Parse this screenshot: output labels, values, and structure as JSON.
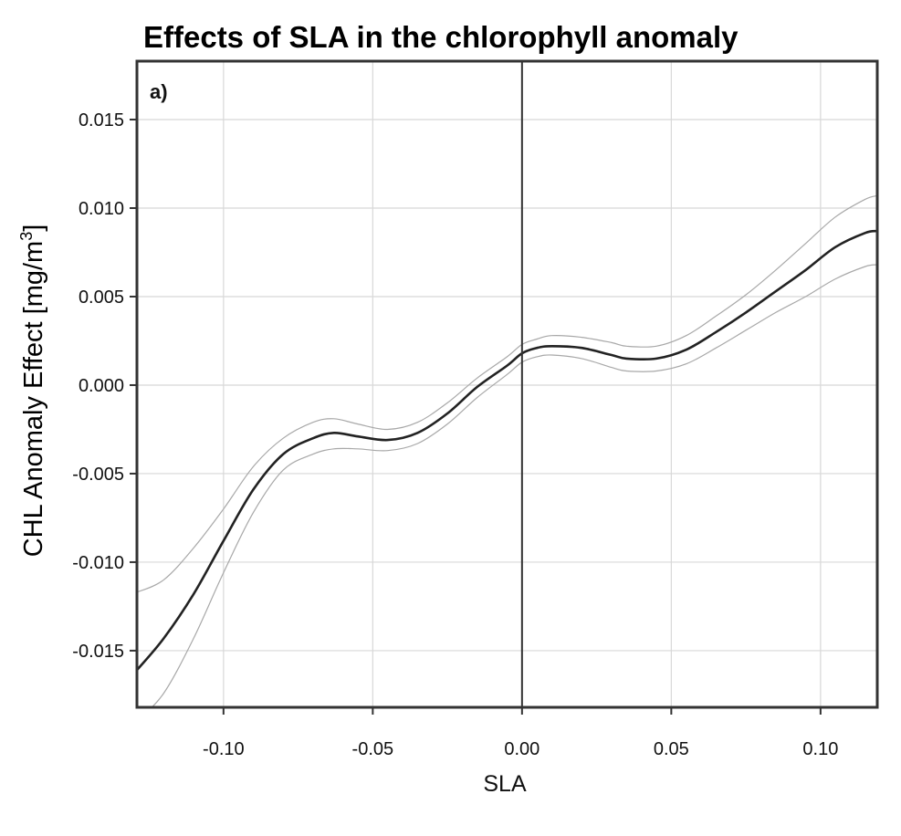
{
  "chart_data": {
    "type": "line",
    "title": "Effects of SLA in the chlorophyll anomaly",
    "panel_label": "a)",
    "xlabel": "SLA",
    "ylabel_main": "CHL Anomaly Effect [mg/m",
    "ylabel_sup": "3",
    "ylabel_end": "]",
    "xlim": [
      -0.129,
      0.119
    ],
    "ylim": [
      -0.0182,
      0.0183
    ],
    "xticks": [
      -0.1,
      -0.05,
      0.0,
      0.05,
      0.1
    ],
    "xtick_labels": [
      "-0.10",
      "-0.05",
      "0.00",
      "0.05",
      "0.10"
    ],
    "yticks": [
      -0.015,
      -0.01,
      -0.005,
      0.0,
      0.005,
      0.01,
      0.015
    ],
    "ytick_labels": [
      "-0.015",
      "-0.010",
      "-0.005",
      "0.000",
      "0.005",
      "0.010",
      "0.015"
    ],
    "grid": true,
    "vline_x": 0.0,
    "x": [
      -0.129,
      -0.12,
      -0.11,
      -0.1,
      -0.09,
      -0.08,
      -0.07,
      -0.063,
      -0.055,
      -0.045,
      -0.035,
      -0.025,
      -0.015,
      -0.005,
      0.0,
      0.005,
      0.01,
      0.02,
      0.03,
      0.035,
      0.045,
      0.055,
      0.065,
      0.075,
      0.085,
      0.095,
      0.105,
      0.115,
      0.119
    ],
    "series": [
      {
        "values": [
          -0.0161,
          -0.0143,
          -0.0118,
          -0.0088,
          -0.0059,
          -0.0039,
          -0.003,
          -0.0027,
          -0.0029,
          -0.0031,
          -0.0027,
          -0.0016,
          -0.0001,
          0.0011,
          0.0018,
          0.0021,
          0.0022,
          0.0021,
          0.0017,
          0.0015,
          0.0015,
          0.002,
          0.003,
          0.0041,
          0.0053,
          0.0065,
          0.0078,
          0.0086,
          0.0087
        ]
      },
      {
        "values": [
          -0.0117,
          -0.011,
          -0.0092,
          -0.007,
          -0.0046,
          -0.003,
          -0.0021,
          -0.0019,
          -0.0022,
          -0.0025,
          -0.0021,
          -0.001,
          0.0004,
          0.0016,
          0.0023,
          0.0026,
          0.0028,
          0.0027,
          0.0024,
          0.0022,
          0.0022,
          0.0028,
          0.0039,
          0.0051,
          0.0065,
          0.008,
          0.0095,
          0.0105,
          0.0107
        ]
      },
      {
        "values": [
          -0.019,
          -0.0174,
          -0.0143,
          -0.0106,
          -0.0072,
          -0.0048,
          -0.0039,
          -0.0036,
          -0.0036,
          -0.0037,
          -0.0033,
          -0.0022,
          -0.0007,
          0.0006,
          0.0013,
          0.0016,
          0.0017,
          0.0015,
          0.001,
          0.0008,
          0.0008,
          0.0012,
          0.0021,
          0.0031,
          0.0041,
          0.005,
          0.006,
          0.0067,
          0.0068
        ]
      }
    ],
    "colors": {
      "fit": "#222222",
      "ci": "#a8a8a8",
      "frame": "#333333",
      "vline": "#333333"
    }
  }
}
